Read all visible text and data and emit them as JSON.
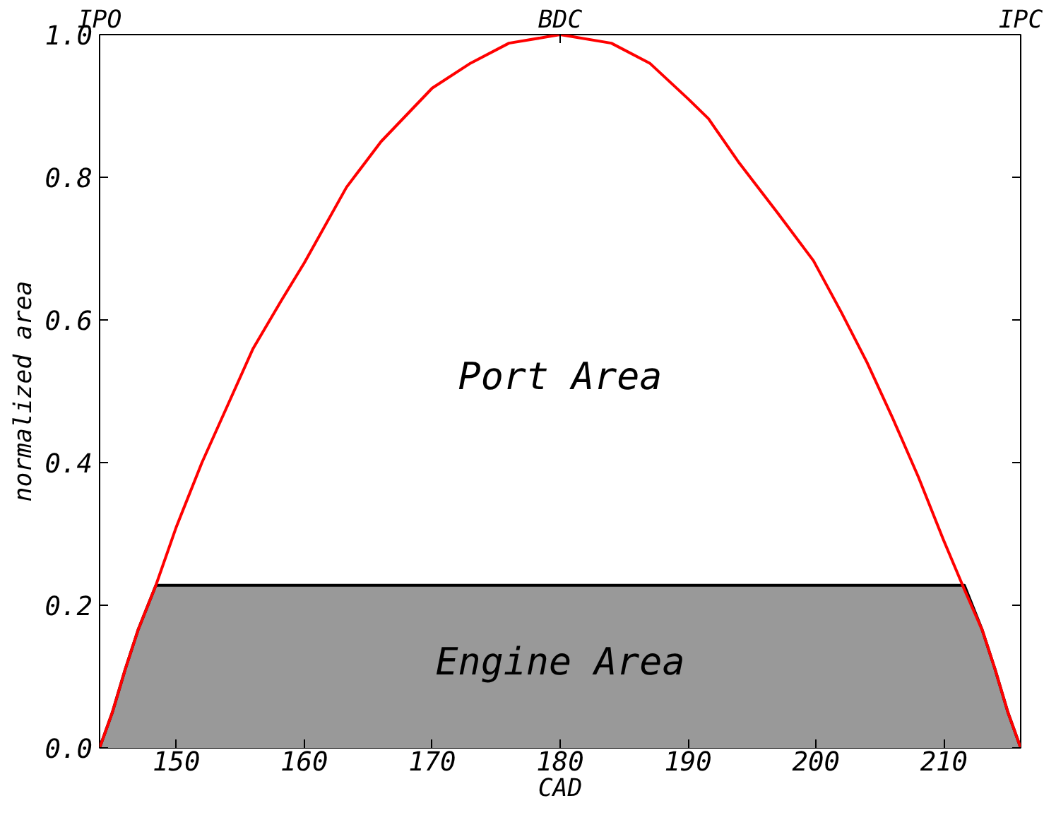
{
  "chart_data": {
    "type": "line",
    "xlabel": "CAD",
    "ylabel": "normalized area",
    "xlim": [
      144,
      216
    ],
    "ylim": [
      0,
      1.0
    ],
    "xticks": [
      150,
      160,
      170,
      180,
      190,
      200,
      210
    ],
    "yticks": [
      {
        "value": 0,
        "label": "0.0"
      },
      0.2,
      0.4,
      0.6,
      0.8,
      {
        "value": 1,
        "label": "1.0"
      }
    ],
    "series": [
      {
        "type": "area",
        "color": "#999999",
        "x": [
          144,
          145,
          146,
          147,
          148.4,
          211.6,
          213,
          214,
          215,
          216
        ],
        "values": [
          0,
          0.05,
          0.11,
          0.165,
          0.228,
          0.228,
          0.165,
          0.11,
          0.05,
          0
        ]
      },
      {
        "color": "#ff0000",
        "x": [
          144,
          145,
          146,
          147,
          148.4,
          150,
          152,
          154,
          156,
          158.2,
          160,
          163.3,
          166,
          170,
          173,
          176,
          180,
          184,
          187,
          190,
          191.6,
          194,
          197,
          199.8,
          202,
          204,
          206,
          208,
          210,
          211.6,
          213,
          214,
          215,
          216
        ],
        "values": [
          0,
          0.05,
          0.11,
          0.165,
          0.228,
          0.31,
          0.4,
          0.48,
          0.56,
          0.627,
          0.68,
          0.786,
          0.85,
          0.925,
          0.96,
          0.988,
          1.0,
          0.988,
          0.96,
          0.91,
          0.882,
          0.82,
          0.75,
          0.683,
          0.61,
          0.54,
          0.462,
          0.38,
          0.29,
          0.222,
          0.165,
          0.11,
          0.05,
          0
        ]
      }
    ],
    "annotations": [
      "IPO",
      "BDC",
      "IPC",
      "Port Area",
      "Engine Area"
    ],
    "grid": false,
    "marker": "none",
    "line_style": "solid"
  }
}
